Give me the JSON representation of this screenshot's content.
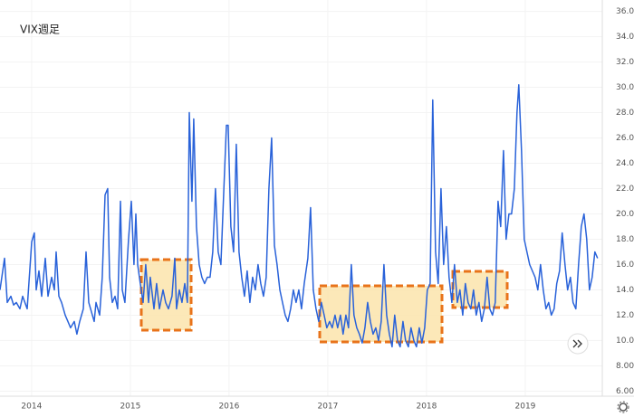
{
  "chart_data": {
    "type": "line",
    "title": "VIX週足",
    "x": [
      2013.68,
      2013.726,
      2013.753,
      2013.79,
      2013.818,
      2013.845,
      2013.882,
      2013.909,
      2013.955,
      2014.001,
      2014.028,
      2014.047,
      2014.074,
      2014.102,
      2014.139,
      2014.166,
      2014.203,
      2014.23,
      2014.249,
      2014.276,
      2014.304,
      2014.34,
      2014.368,
      2014.395,
      2014.432,
      2014.459,
      2014.487,
      2014.524,
      2014.551,
      2014.579,
      2014.597,
      2014.634,
      2014.652,
      2014.689,
      2014.716,
      2014.744,
      2014.771,
      2014.79,
      2014.817,
      2014.845,
      2014.872,
      2014.9,
      2014.918,
      2014.945,
      2014.982,
      2015.01,
      2015.037,
      2015.056,
      2015.074,
      2015.101,
      2015.129,
      2015.156,
      2015.184,
      2015.202,
      2015.239,
      2015.266,
      2015.294,
      2015.331,
      2015.358,
      2015.386,
      2015.422,
      2015.45,
      2015.468,
      2015.496,
      2015.523,
      2015.551,
      2015.578,
      2015.597,
      2015.624,
      2015.642,
      2015.67,
      2015.697,
      2015.725,
      2015.752,
      2015.78,
      2015.807,
      2015.835,
      2015.862,
      2015.89,
      2015.917,
      2015.945,
      2015.973,
      2015.991,
      2016.018,
      2016.046,
      2016.073,
      2016.101,
      2016.128,
      2016.156,
      2016.183,
      2016.211,
      2016.238,
      2016.266,
      2016.293,
      2016.321,
      2016.348,
      2016.376,
      2016.403,
      2016.431,
      2016.459,
      2016.486,
      2016.514,
      2016.541,
      2016.569,
      2016.596,
      2016.624,
      2016.651,
      2016.679,
      2016.706,
      2016.734,
      2016.761,
      2016.798,
      2016.825,
      2016.853,
      2016.88,
      2016.908,
      2016.935,
      2016.963,
      2016.99,
      2017.018,
      2017.045,
      2017.073,
      2017.1,
      2017.128,
      2017.155,
      2017.183,
      2017.21,
      2017.238,
      2017.265,
      2017.293,
      2017.32,
      2017.348,
      2017.376,
      2017.403,
      2017.431,
      2017.458,
      2017.486,
      2017.513,
      2017.541,
      2017.568,
      2017.596,
      2017.623,
      2017.651,
      2017.678,
      2017.706,
      2017.733,
      2017.761,
      2017.788,
      2017.816,
      2017.843,
      2017.871,
      2017.898,
      2017.926,
      2017.953,
      2017.981,
      2018.008,
      2018.036,
      2018.063,
      2018.091,
      2018.118,
      2018.146,
      2018.173,
      2018.201,
      2018.228,
      2018.256,
      2018.283,
      2018.311,
      2018.338,
      2018.366,
      2018.393,
      2018.421,
      2018.448,
      2018.476,
      2018.503,
      2018.531,
      2018.558,
      2018.586,
      2018.613,
      2018.641,
      2018.668,
      2018.696,
      2018.724,
      2018.751,
      2018.779,
      2018.806,
      2018.834,
      2018.861,
      2018.889,
      2018.916,
      2018.934,
      2018.962,
      2018.989,
      2019.017,
      2019.044,
      2019.072,
      2019.099,
      2019.127,
      2019.154,
      2019.182,
      2019.209,
      2019.237,
      2019.264,
      2019.292,
      2019.319,
      2019.347,
      2019.374,
      2019.402,
      2019.429,
      2019.457,
      2019.484,
      2019.512,
      2019.54,
      2019.567,
      2019.595,
      2019.622,
      2019.65,
      2019.677,
      2019.705,
      2019.732
    ],
    "series": [
      {
        "color": "#2962d9",
        "values": [
          14,
          16.5,
          13,
          13.5,
          12.8,
          13,
          12.5,
          13.5,
          12.5,
          17.8,
          18.5,
          14,
          15.5,
          13.5,
          16.5,
          13.5,
          15,
          14,
          17,
          13.5,
          13,
          12,
          11.5,
          11,
          11.5,
          10.5,
          11.5,
          12.5,
          17,
          13,
          12.5,
          11.5,
          13,
          12,
          15,
          21.5,
          22,
          15,
          13,
          13.5,
          12.5,
          21,
          14,
          13,
          18,
          21,
          16,
          20,
          16,
          14.5,
          13,
          16,
          13,
          15,
          12.5,
          14.5,
          12.5,
          14,
          13,
          12.5,
          13.5,
          16.5,
          12.5,
          14,
          13,
          14.5,
          13,
          28,
          21,
          27.5,
          19,
          16,
          15,
          14.5,
          15,
          15,
          17,
          22,
          17,
          16,
          21.5,
          27,
          27,
          19,
          17,
          25.5,
          17,
          15,
          13.5,
          15.5,
          13,
          15,
          14,
          16,
          14.5,
          13.5,
          15,
          22,
          26,
          17.5,
          16,
          14,
          13,
          12,
          11.5,
          12.5,
          14,
          13,
          14,
          12.5,
          14.5,
          16.5,
          20.5,
          14,
          12.5,
          11.5,
          13,
          12,
          11,
          11.5,
          11,
          12,
          11,
          12,
          10.5,
          12,
          11,
          16,
          12,
          11,
          10.5,
          9.8,
          11,
          13,
          11.5,
          10.5,
          11,
          10,
          11.5,
          16,
          12,
          10.5,
          9.5,
          12,
          10,
          9.5,
          11.5,
          10,
          9.5,
          11,
          10,
          9.5,
          11,
          9.8,
          11,
          14,
          14.5,
          29,
          17,
          14.5,
          22,
          16,
          19,
          15,
          13,
          16,
          13,
          14,
          12,
          14.5,
          13,
          12.5,
          14,
          12,
          13,
          11.5,
          12.5,
          15,
          12.5,
          12,
          13,
          21,
          19,
          25,
          18,
          20,
          20,
          22,
          28,
          30.2,
          25,
          18,
          17,
          16,
          15.5,
          15,
          14,
          16,
          14,
          12.5,
          13,
          12,
          12.5,
          14.5,
          15.5,
          18.5,
          16,
          14,
          15,
          13,
          12.5,
          16,
          19,
          20,
          18,
          14,
          15,
          17,
          16.5
        ]
      }
    ],
    "xlim": [
      2013.68,
      2019.78
    ],
    "xticks": [
      2014,
      2015,
      2016,
      2017,
      2018,
      2019
    ],
    "ylim": [
      5.6,
      36.9
    ],
    "yticks": [
      {
        "value": 6,
        "label": "6.00"
      },
      {
        "value": 8,
        "label": "8.00"
      },
      {
        "value": 10,
        "label": "10.00"
      },
      {
        "value": 12,
        "label": "12.00"
      },
      {
        "value": 14,
        "label": "14.00"
      },
      {
        "value": 16,
        "label": "16.00"
      },
      {
        "value": 18,
        "label": "18.00"
      },
      {
        "value": 20,
        "label": "20.00"
      },
      {
        "value": 22,
        "label": "22.00"
      },
      {
        "value": 24,
        "label": "24.00"
      },
      {
        "value": 26,
        "label": "26.00"
      },
      {
        "value": 28,
        "label": "28.00"
      },
      {
        "value": 30,
        "label": "30.00"
      },
      {
        "value": 32,
        "label": "32.00"
      },
      {
        "value": 34,
        "label": "34.00"
      },
      {
        "value": 36,
        "label": "36.00"
      }
    ],
    "grid": true
  }
}
